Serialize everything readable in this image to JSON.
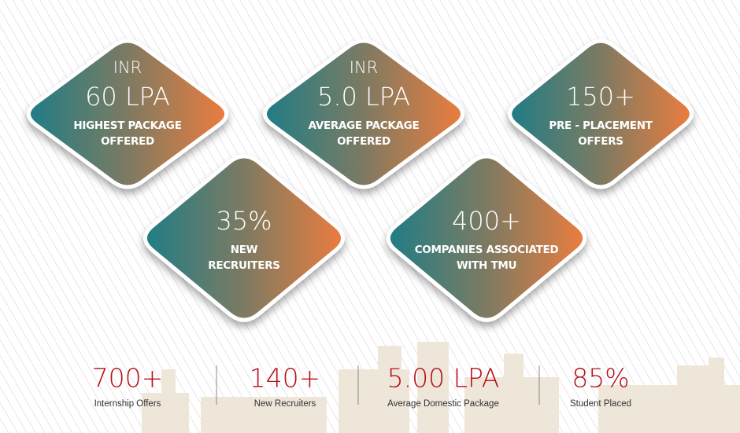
{
  "tiles": [
    {
      "prefix": "INR",
      "value": "60 LPA",
      "label": [
        "HIGHEST PACKAGE",
        "OFFERED"
      ]
    },
    {
      "prefix": "INR",
      "value": "5.0 LPA",
      "label": [
        "AVERAGE PACKAGE",
        "OFFERED"
      ]
    },
    {
      "value": "150+",
      "label": [
        "PRE - PLACEMENT",
        "OFFERS"
      ]
    },
    {
      "value": "35%",
      "label": [
        "NEW",
        "RECRUITERS"
      ]
    },
    {
      "value": "400+",
      "label": [
        "COMPANIES  ASSOCIATED",
        "WITH TMU"
      ]
    }
  ],
  "stats": [
    {
      "value": "700+",
      "label": "Internship Offers"
    },
    {
      "value": "140+",
      "label": "New Recruiters"
    },
    {
      "value": "5.00 LPA",
      "label": "Average Domestic Package"
    },
    {
      "value": "85%",
      "label": "Student Placed"
    }
  ]
}
